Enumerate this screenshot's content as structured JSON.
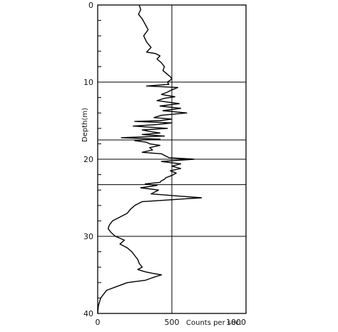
{
  "chart_data": {
    "type": "line",
    "title": "",
    "xlabel": "Counts per sec.",
    "ylabel": "Depth(m)",
    "xlim": [
      0,
      1000
    ],
    "ylim": [
      40,
      0
    ],
    "y_axis_inverted": true,
    "x_ticks": [
      0,
      500,
      1000
    ],
    "y_ticks": [
      0,
      10,
      20,
      30,
      40
    ],
    "x_tick_labels": [
      "0",
      "500",
      "1000"
    ],
    "y_tick_labels": [
      "0",
      "10",
      "20",
      "30",
      "40"
    ],
    "grid": "partial",
    "reference_lines": {
      "vertical_x": [
        500
      ],
      "horizontal_depths": [
        10,
        17.5,
        20,
        23.3,
        30
      ]
    },
    "series": [
      {
        "values_x": [
          280,
          290,
          275,
          300,
          320,
          340,
          310,
          330,
          360,
          330,
          390,
          420,
          400,
          430,
          450,
          440,
          470,
          490,
          500,
          470,
          480,
          330,
          540,
          500,
          470,
          430,
          520,
          450,
          400,
          550,
          420,
          560,
          440,
          600,
          430,
          380,
          500,
          420,
          250,
          500,
          400,
          240,
          470,
          300,
          350,
          420,
          300,
          450,
          160,
          420,
          300,
          250,
          330,
          350,
          420,
          350,
          370,
          300,
          430,
          450,
          480,
          650,
          430,
          560,
          500,
          560,
          490,
          530,
          500,
          460,
          450,
          430,
          420,
          320,
          400,
          290,
          410,
          360,
          700,
          300,
          250,
          220,
          200,
          150,
          100,
          80,
          70,
          90,
          120,
          180,
          150,
          200,
          230,
          250,
          270,
          280,
          300,
          270,
          320,
          370,
          430,
          380,
          350,
          320,
          200,
          130,
          60,
          20,
          5,
          0
        ],
        "values_y": [
          0,
          0.6,
          1.2,
          1.8,
          2.5,
          3.2,
          4.0,
          4.8,
          5.5,
          6.1,
          6.3,
          6.6,
          7.0,
          7.5,
          8.0,
          8.5,
          9.0,
          9.3,
          9.6,
          10.0,
          10.3,
          10.5,
          10.7,
          11.0,
          11.3,
          11.6,
          11.9,
          12.1,
          12.4,
          12.8,
          13.1,
          13.4,
          13.7,
          14.0,
          14.3,
          14.6,
          14.8,
          15.0,
          15.1,
          15.3,
          15.5,
          15.7,
          16.0,
          16.2,
          16.4,
          16.6,
          16.8,
          17.0,
          17.2,
          17.4,
          17.5,
          17.6,
          17.8,
          18.0,
          18.2,
          18.5,
          18.8,
          19.1,
          19.3,
          19.5,
          19.8,
          20.0,
          20.3,
          20.6,
          20.9,
          21.2,
          21.5,
          21.8,
          22.1,
          22.4,
          22.6,
          22.8,
          23.0,
          23.2,
          23.4,
          23.7,
          24.0,
          24.5,
          25.0,
          25.5,
          26.0,
          26.5,
          27.0,
          27.5,
          28.0,
          28.5,
          29.0,
          29.5,
          30.0,
          30.5,
          31.0,
          31.5,
          32.0,
          32.5,
          33.0,
          33.5,
          34.0,
          34.3,
          34.6,
          34.8,
          35.0,
          35.3,
          35.5,
          35.7,
          36.0,
          36.5,
          37.0,
          38.0,
          39.0,
          40.0
        ]
      }
    ]
  }
}
